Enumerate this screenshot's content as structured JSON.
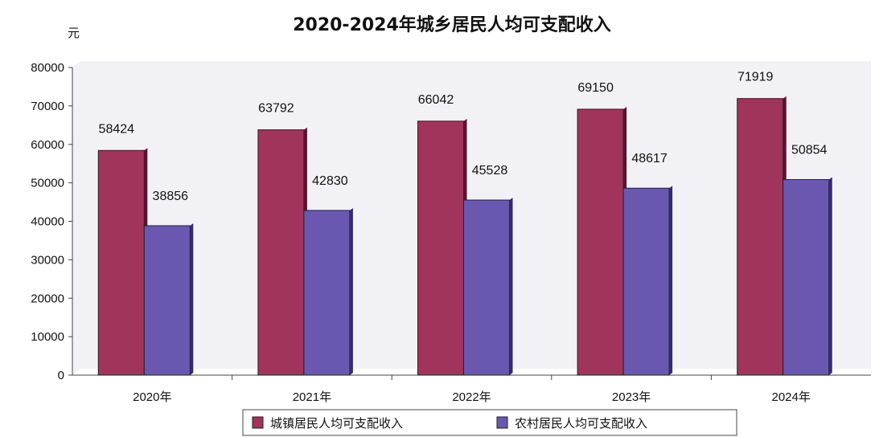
{
  "chart_data": {
    "type": "bar",
    "title": "2020-2024年城乡居民人均可支配收入",
    "ylabel": "元",
    "xlabel": "",
    "ylim": [
      0,
      80000
    ],
    "yticks": [
      "0",
      "10000",
      "20000",
      "30000",
      "40000",
      "50000",
      "60000",
      "70000",
      "80000"
    ],
    "categories": [
      "2020年",
      "2021年",
      "2022年",
      "2023年",
      "2024年"
    ],
    "series": [
      {
        "name": "城镇居民人均可支配收入",
        "values": [
          58424,
          63792,
          66042,
          69150,
          71919
        ],
        "labels": [
          "58424",
          "63792",
          "66042",
          "69150",
          "71919"
        ]
      },
      {
        "name": "农村居民人均可支配收入",
        "values": [
          38856,
          42830,
          45528,
          48617,
          50854
        ],
        "labels": [
          "38856",
          "42830",
          "45528",
          "48617",
          "50854"
        ]
      }
    ],
    "legend": "bottom",
    "grid": false,
    "colors": {
      "urban": "#a0345c",
      "rural": "#6a58b0"
    }
  }
}
